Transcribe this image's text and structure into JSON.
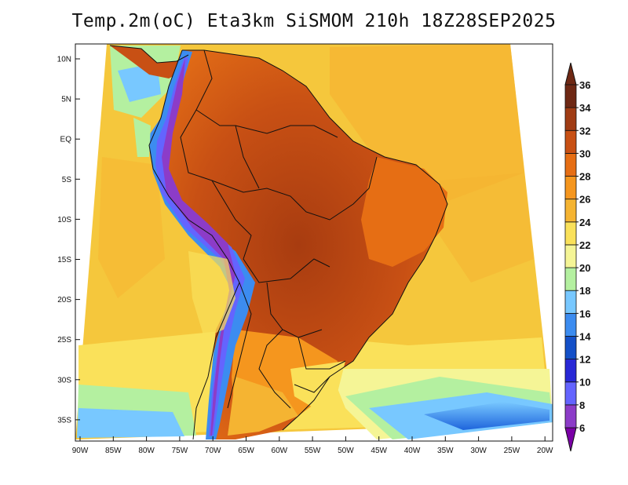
{
  "title": "Temp.2m(oC) Eta3km SiSMOM 210h 18Z28SEP2025",
  "map": {
    "variable": "2 m air temperature",
    "units": "oC",
    "lat_range": [
      -38,
      11
    ],
    "lon_range": [
      -91,
      -20
    ],
    "lat_ticks": [
      "10N",
      "5N",
      "EQ",
      "5S",
      "10S",
      "15S",
      "20S",
      "25S",
      "30S",
      "35S"
    ],
    "lon_ticks": [
      "90W",
      "85W",
      "80W",
      "75W",
      "70W",
      "65W",
      "60W",
      "55W",
      "50W",
      "45W",
      "40W",
      "35W",
      "30W",
      "25W",
      "20W"
    ]
  },
  "colorbar": {
    "labels": [
      "6",
      "8",
      "10",
      "12",
      "14",
      "16",
      "18",
      "20",
      "22",
      "24",
      "26",
      "28",
      "30",
      "32",
      "34",
      "36"
    ],
    "colors": [
      "#7a00a6",
      "#8c3cc8",
      "#6464ff",
      "#2828d6",
      "#1450c8",
      "#3c8cf0",
      "#78c8ff",
      "#b4f0a0",
      "#f5f596",
      "#fae15a",
      "#f5b432",
      "#f5961e",
      "#e66e14",
      "#c85014",
      "#a03c14",
      "#6e2814"
    ]
  }
}
